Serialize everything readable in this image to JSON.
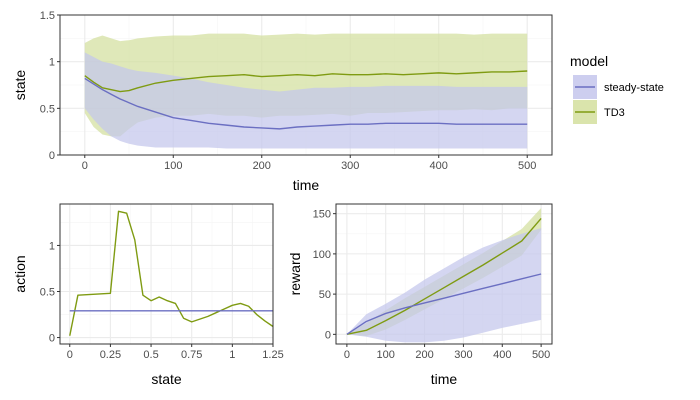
{
  "colors": {
    "steady_state": "#6b6fc2",
    "td3": "#7f9b12",
    "steady_state_band": "#c4c6ec",
    "td3_band": "#d3df9e",
    "panel_border": "#333333",
    "grid_major": "#ebebeb",
    "tick_text": "#4d4d4d"
  },
  "legend": {
    "title": "model",
    "items": [
      {
        "key": "steady_state",
        "label": "steady-state"
      },
      {
        "key": "td3",
        "label": "TD3"
      }
    ]
  },
  "chart_data": [
    {
      "id": "state_vs_time",
      "type": "line",
      "xlabel": "time",
      "ylabel": "state",
      "xlim": [
        -28,
        528
      ],
      "ylim": [
        0,
        1.5
      ],
      "xticks": [
        0,
        100,
        200,
        300,
        400,
        500
      ],
      "yticks": [
        0.0,
        0.5,
        1.0,
        1.5
      ],
      "ytick_labels": [
        "0.0",
        "0.5",
        "1.0",
        "1.5"
      ],
      "x": [
        0,
        10,
        20,
        30,
        40,
        50,
        60,
        80,
        100,
        120,
        140,
        160,
        180,
        200,
        220,
        240,
        260,
        280,
        300,
        320,
        340,
        360,
        380,
        400,
        420,
        440,
        460,
        480,
        500
      ],
      "series": [
        {
          "key": "td3",
          "name": "TD3",
          "values": [
            0.85,
            0.78,
            0.72,
            0.7,
            0.68,
            0.69,
            0.72,
            0.77,
            0.8,
            0.82,
            0.84,
            0.85,
            0.86,
            0.84,
            0.85,
            0.86,
            0.85,
            0.87,
            0.86,
            0.86,
            0.87,
            0.86,
            0.87,
            0.88,
            0.87,
            0.88,
            0.89,
            0.89,
            0.9
          ],
          "lower": [
            0.45,
            0.3,
            0.22,
            0.2,
            0.2,
            0.28,
            0.35,
            0.4,
            0.42,
            0.42,
            0.44,
            0.42,
            0.42,
            0.4,
            0.42,
            0.42,
            0.43,
            0.44,
            0.42,
            0.45,
            0.45,
            0.46,
            0.47,
            0.48,
            0.48,
            0.49,
            0.48,
            0.5,
            0.5
          ],
          "upper": [
            1.2,
            1.25,
            1.28,
            1.25,
            1.22,
            1.23,
            1.25,
            1.27,
            1.28,
            1.28,
            1.3,
            1.3,
            1.3,
            1.28,
            1.29,
            1.3,
            1.29,
            1.3,
            1.3,
            1.3,
            1.3,
            1.3,
            1.3,
            1.3,
            1.3,
            1.29,
            1.3,
            1.3,
            1.3
          ]
        },
        {
          "key": "steady_state",
          "name": "steady-state",
          "values": [
            0.82,
            0.76,
            0.7,
            0.65,
            0.6,
            0.56,
            0.52,
            0.46,
            0.4,
            0.37,
            0.34,
            0.32,
            0.3,
            0.29,
            0.28,
            0.3,
            0.31,
            0.32,
            0.33,
            0.33,
            0.34,
            0.34,
            0.34,
            0.34,
            0.33,
            0.33,
            0.33,
            0.33,
            0.33
          ],
          "lower": [
            0.5,
            0.38,
            0.28,
            0.2,
            0.15,
            0.12,
            0.1,
            0.08,
            0.08,
            0.08,
            0.08,
            0.07,
            0.07,
            0.07,
            0.07,
            0.07,
            0.07,
            0.07,
            0.07,
            0.07,
            0.07,
            0.07,
            0.07,
            0.07,
            0.07,
            0.07,
            0.07,
            0.07,
            0.07
          ],
          "upper": [
            1.1,
            1.05,
            1.0,
            0.98,
            0.95,
            0.92,
            0.9,
            0.88,
            0.85,
            0.82,
            0.78,
            0.75,
            0.72,
            0.7,
            0.68,
            0.7,
            0.72,
            0.72,
            0.73,
            0.73,
            0.74,
            0.74,
            0.74,
            0.74,
            0.73,
            0.73,
            0.73,
            0.73,
            0.73
          ]
        }
      ]
    },
    {
      "id": "action_vs_state",
      "type": "line",
      "xlabel": "state",
      "ylabel": "action",
      "xlim": [
        -0.06,
        1.25
      ],
      "ylim": [
        -0.07,
        1.45
      ],
      "xticks": [
        0.0,
        0.25,
        0.5,
        0.75,
        1.0,
        1.25
      ],
      "xtick_labels": [
        "0.00",
        "0.25",
        "0.50",
        "0.75",
        "1.00",
        "1.25"
      ],
      "yticks": [
        0.0,
        0.5,
        1.0
      ],
      "ytick_labels": [
        "0.0",
        "0.5",
        "1.0"
      ],
      "series": [
        {
          "key": "td3",
          "name": "TD3",
          "x": [
            0.0,
            0.05,
            0.25,
            0.3,
            0.35,
            0.4,
            0.45,
            0.5,
            0.55,
            0.6,
            0.65,
            0.7,
            0.75,
            0.8,
            0.85,
            0.9,
            0.95,
            1.0,
            1.05,
            1.1,
            1.15,
            1.2,
            1.25
          ],
          "values": [
            0.02,
            0.46,
            0.48,
            1.37,
            1.35,
            1.06,
            0.46,
            0.4,
            0.44,
            0.4,
            0.37,
            0.21,
            0.17,
            0.2,
            0.23,
            0.27,
            0.31,
            0.35,
            0.37,
            0.34,
            0.25,
            0.18,
            0.12
          ]
        },
        {
          "key": "steady_state",
          "name": "steady-state",
          "x": [
            0.0,
            1.25
          ],
          "values": [
            0.29,
            0.29
          ]
        }
      ]
    },
    {
      "id": "reward_vs_time",
      "type": "area",
      "xlabel": "time",
      "ylabel": "reward",
      "xlim": [
        -28,
        528
      ],
      "ylim": [
        -12,
        162
      ],
      "xticks": [
        0,
        100,
        200,
        300,
        400,
        500
      ],
      "yticks": [
        0,
        50,
        100,
        150
      ],
      "x": [
        0,
        50,
        100,
        150,
        200,
        250,
        300,
        350,
        400,
        450,
        500
      ],
      "series": [
        {
          "key": "td3",
          "name": "TD3",
          "values": [
            0,
            5,
            17,
            30,
            44,
            58,
            72,
            86,
            101,
            116,
            144
          ],
          "lower": [
            0,
            -2,
            6,
            18,
            31,
            44,
            57,
            70,
            84,
            98,
            130
          ],
          "upper": [
            0,
            14,
            30,
            45,
            59,
            73,
            87,
            101,
            116,
            131,
            157
          ]
        },
        {
          "key": "steady_state",
          "name": "steady-state",
          "values": [
            0,
            16,
            26,
            33,
            39,
            45,
            51,
            57,
            63,
            69,
            75
          ],
          "lower": [
            0,
            -3,
            -8,
            -10,
            -10,
            -8,
            -4,
            2,
            8,
            13,
            18
          ],
          "upper": [
            0,
            25,
            38,
            52,
            68,
            82,
            96,
            108,
            117,
            125,
            132
          ]
        }
      ]
    }
  ]
}
